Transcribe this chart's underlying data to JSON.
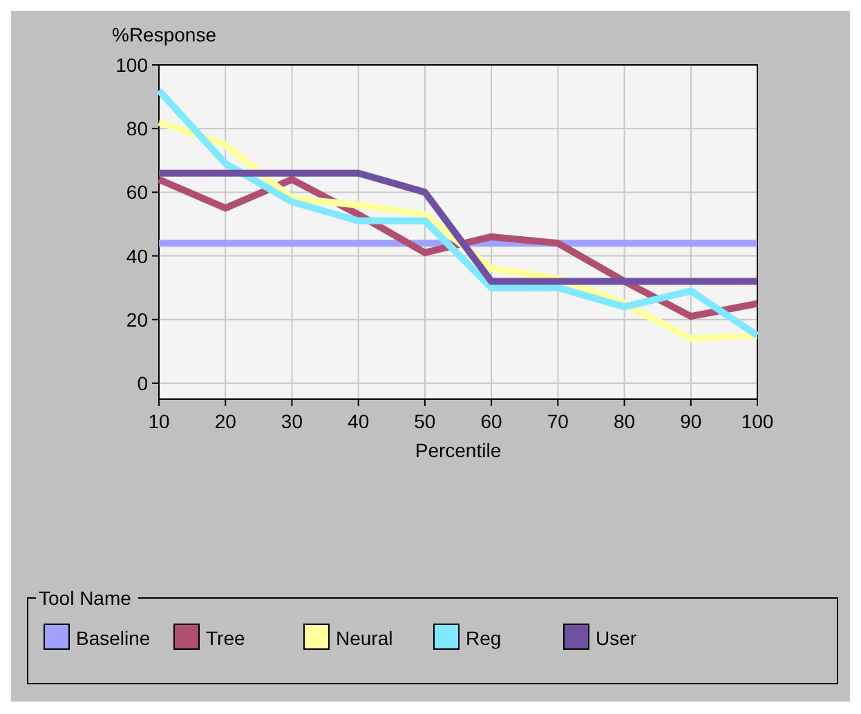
{
  "chart_data": {
    "type": "line",
    "xlabel": "Percentile",
    "ylabel": "%Response",
    "legend_title": "Tool Name",
    "x": [
      10,
      20,
      30,
      40,
      50,
      60,
      70,
      80,
      90,
      100
    ],
    "xlim": [
      10,
      100
    ],
    "xticks": [
      10,
      20,
      30,
      40,
      50,
      60,
      70,
      80,
      90,
      100
    ],
    "ylim": [
      -5,
      100
    ],
    "yticks": [
      0,
      20,
      40,
      60,
      80,
      100
    ],
    "grid": true,
    "legend": "bottom",
    "marker": "none",
    "line_style": "solid",
    "series": [
      {
        "name": "Baseline",
        "color": "#a0a0ff",
        "values": [
          44,
          44,
          44,
          44,
          44,
          44,
          44,
          44,
          44,
          44
        ]
      },
      {
        "name": "Tree",
        "color": "#b05070",
        "values": [
          64,
          55,
          64,
          53,
          41,
          46,
          44,
          32,
          21,
          25
        ]
      },
      {
        "name": "Neural",
        "color": "#ffffa0",
        "values": [
          82,
          75,
          58,
          56,
          53,
          36,
          33,
          25,
          14,
          15
        ]
      },
      {
        "name": "Reg",
        "color": "#80e8ff",
        "values": [
          92,
          69,
          57,
          51,
          51,
          30,
          30,
          24,
          29,
          15
        ]
      },
      {
        "name": "User",
        "color": "#7050a0",
        "values": [
          66,
          66,
          66,
          66,
          60,
          32,
          32,
          32,
          32,
          32
        ]
      }
    ]
  }
}
